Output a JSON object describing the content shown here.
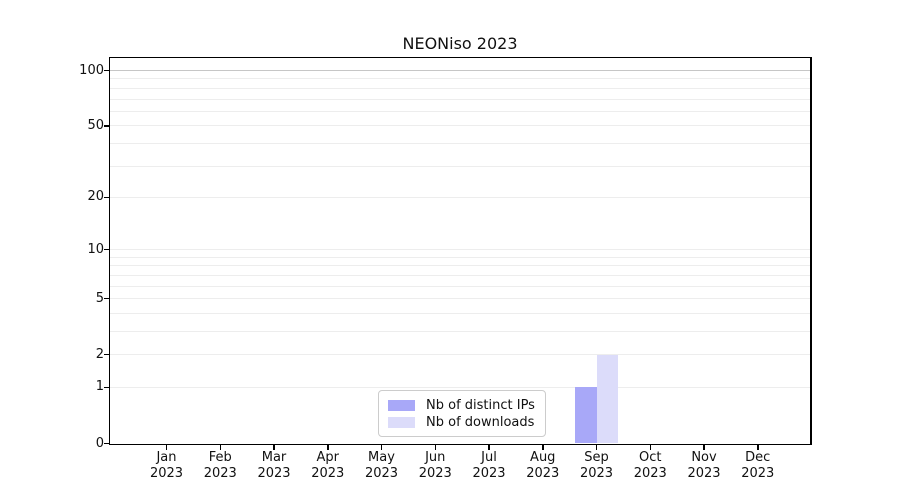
{
  "chart_data": {
    "type": "bar",
    "title": "NEONiso 2023",
    "categories": [
      "Jan 2023",
      "Feb 2023",
      "Mar 2023",
      "Apr 2023",
      "May 2023",
      "Jun 2023",
      "Jul 2023",
      "Aug 2023",
      "Sep 2023",
      "Oct 2023",
      "Nov 2023",
      "Dec 2023"
    ],
    "x_tick_months": [
      "Jan",
      "Feb",
      "Mar",
      "Apr",
      "May",
      "Jun",
      "Jul",
      "Aug",
      "Sep",
      "Oct",
      "Nov",
      "Dec"
    ],
    "x_tick_year": "2023",
    "series": [
      {
        "name": "Nb of distinct IPs",
        "color": "#a8a8f8",
        "values": [
          0,
          0,
          0,
          0,
          0,
          0,
          0,
          0,
          1,
          0,
          0,
          0
        ]
      },
      {
        "name": "Nb of downloads",
        "color": "#dcdcfa",
        "values": [
          0,
          0,
          0,
          0,
          0,
          0,
          0,
          0,
          2,
          0,
          0,
          0
        ]
      }
    ],
    "xlabel": "",
    "ylabel": "",
    "y_scale": "log1p",
    "ylim": [
      0,
      117
    ],
    "y_ticks": [
      0,
      1,
      2,
      5,
      10,
      20,
      50,
      100
    ],
    "y_tick_labels": [
      "0",
      "1",
      "2",
      "5",
      "10",
      "20",
      "50",
      "100"
    ],
    "y_gridlines": [
      1,
      2,
      3,
      4,
      5,
      6,
      7,
      8,
      9,
      10,
      20,
      30,
      40,
      50,
      60,
      70,
      80,
      90,
      100
    ],
    "grid": true,
    "legend_position": "lower center"
  },
  "colors": {
    "axis": "#000000",
    "gridline_minor": "#ededed",
    "gridline_top": "#c6c6c6",
    "legend_border": "#cccccc",
    "background": "#ffffff"
  }
}
